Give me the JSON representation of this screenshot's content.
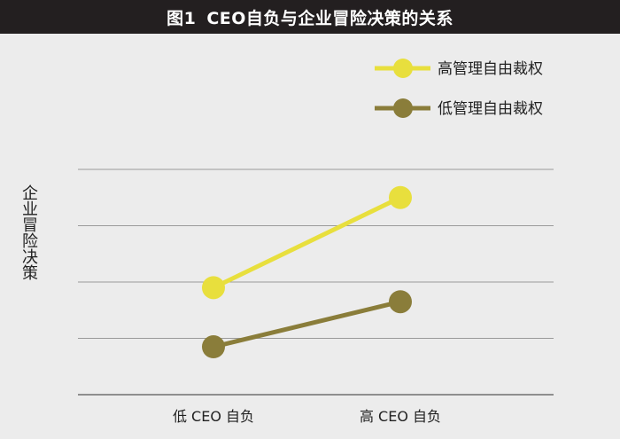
{
  "header": {
    "figure_no": "图1",
    "title": "CEO自负与企业冒险决策的关系"
  },
  "chart_data": {
    "type": "line",
    "title": "CEO自负与企业冒险决策的关系",
    "xlabel": "",
    "ylabel": "企业冒险决策",
    "categories": [
      "低 CEO 自负",
      "高 CEO 自负"
    ],
    "ylim": [
      0,
      4
    ],
    "grid": true,
    "legend_position": "top-right",
    "series": [
      {
        "name": "高管理自由裁权",
        "values": [
          1.9,
          3.5
        ],
        "color": "#e8df3d"
      },
      {
        "name": "低管理自由裁权",
        "values": [
          0.85,
          1.65
        ],
        "color": "#8a7d3a"
      }
    ]
  }
}
